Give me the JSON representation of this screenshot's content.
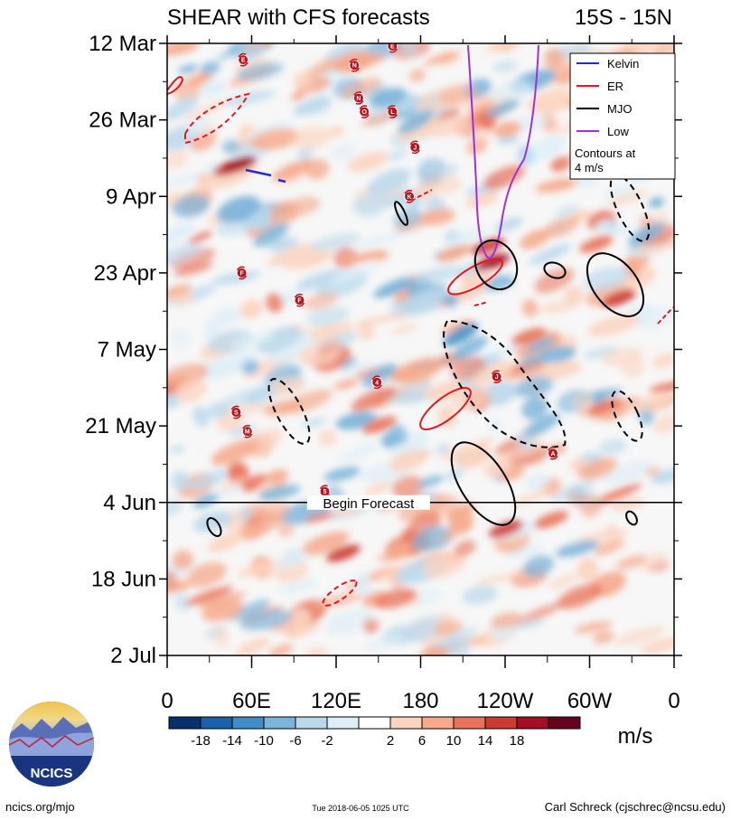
{
  "header": {
    "title": "SHEAR with CFS forecasts",
    "region": "15S - 15N"
  },
  "chart_data": {
    "type": "heatmap",
    "title": "SHEAR with CFS forecasts",
    "xlabel": "",
    "ylabel": "",
    "x_ticks": [
      "0",
      "60E",
      "120E",
      "180",
      "120W",
      "60W",
      "0"
    ],
    "x_tick_lon": [
      0,
      60,
      120,
      180,
      240,
      300,
      360
    ],
    "xlim": [
      0,
      360
    ],
    "y_ticks": [
      "12 Mar",
      "26 Mar",
      "9 Apr",
      "23 Apr",
      "7 May",
      "21 May",
      "4 Jun",
      "18 Jun",
      "2 Jul"
    ],
    "y_tick_day": [
      0,
      14,
      28,
      42,
      56,
      70,
      84,
      98,
      112
    ],
    "ylim": [
      0,
      112
    ],
    "forecast_day": 84,
    "forecast_label": "Begin Forecast",
    "colorbar": {
      "labels": [
        "-18",
        "-14",
        "-10",
        "-6",
        "-2",
        "2",
        "6",
        "10",
        "14",
        "18"
      ],
      "colors": [
        "#08306b",
        "#1d5fa8",
        "#3f8dc4",
        "#7db4d9",
        "#bcd9ec",
        "#ddeef7",
        "#ffffff",
        "#fcd4c0",
        "#f6a98b",
        "#e9735a",
        "#cc3b32",
        "#a50f25",
        "#67001f"
      ],
      "units": "m/s"
    },
    "legend": {
      "placement": "top-right",
      "entries": [
        {
          "name": "Kelvin",
          "color": "#1f2bd6"
        },
        {
          "name": "ER",
          "color": "#e3161b"
        },
        {
          "name": "MJO",
          "color": "#000000"
        },
        {
          "name": "Low",
          "color": "#9b30e0"
        }
      ],
      "note_line1": "Contours at",
      "note_line2": "4 m/s"
    },
    "storm_labels": [
      {
        "label": "E",
        "lon": 54,
        "day": 3
      },
      {
        "label": "N",
        "lon": 133,
        "day": 4
      },
      {
        "label": "E",
        "lon": 160,
        "day": 0.5
      },
      {
        "label": "N",
        "lon": 136,
        "day": 10
      },
      {
        "label": "O",
        "lon": 140,
        "day": 12.5
      },
      {
        "label": "L",
        "lon": 160,
        "day": 12.5
      },
      {
        "label": "J",
        "lon": 176,
        "day": 19
      },
      {
        "label": "K",
        "lon": 172,
        "day": 28
      },
      {
        "label": "F",
        "lon": 53,
        "day": 42
      },
      {
        "label": "F",
        "lon": 94,
        "day": 47
      },
      {
        "label": "4",
        "lon": 149,
        "day": 62
      },
      {
        "label": "J",
        "lon": 234,
        "day": 61
      },
      {
        "label": "S",
        "lon": 49,
        "day": 67.5
      },
      {
        "label": "M",
        "lon": 57,
        "day": 71
      },
      {
        "label": "A",
        "lon": 274,
        "day": 75
      },
      {
        "label": "5",
        "lon": 112,
        "day": 82
      }
    ],
    "contours": {
      "kelvin": [
        {
          "lon": 64,
          "day": 23.5
        },
        {
          "lon": 77,
          "day": 24
        }
      ],
      "er": [
        {
          "lon": 5,
          "day": 7.5
        },
        {
          "lon": 224,
          "day": 42
        },
        {
          "lon": 198,
          "day": 66.5
        },
        {
          "lon": 128,
          "day": 101
        }
      ],
      "mjo": [
        {
          "lon": 232,
          "day": 40.5
        },
        {
          "lon": 276,
          "day": 41.5
        },
        {
          "lon": 322,
          "day": 44
        },
        {
          "lon": 240,
          "day": 83.5
        },
        {
          "lon": 32,
          "day": 88.5
        },
        {
          "lon": 330,
          "day": 86.5
        }
      ],
      "low": [
        {
          "lon": 232,
          "day": 40
        }
      ]
    }
  },
  "logo": {
    "text": "NCICS"
  },
  "footer": {
    "url": "ncics.org/mjo",
    "timestamp": "Tue 2018-06-05 1025 UTC",
    "author": "Carl Schreck (cjschrec@ncsu.edu)"
  }
}
